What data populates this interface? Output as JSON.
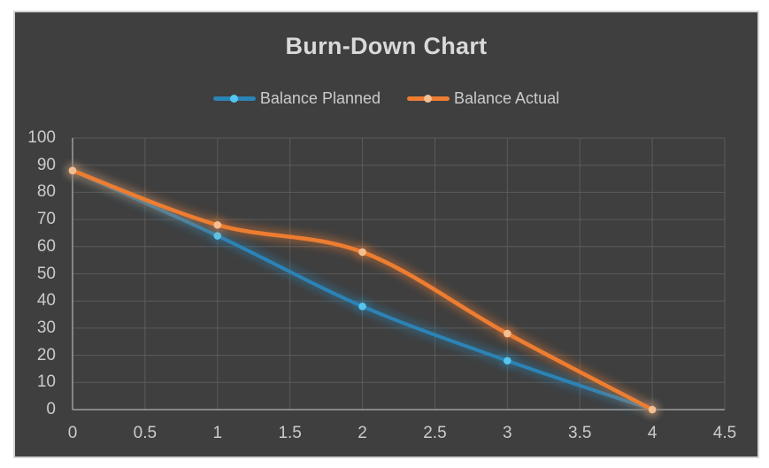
{
  "page": {
    "background": "#ffffff"
  },
  "chart_data": {
    "type": "line",
    "title": "Burn-Down Chart",
    "x": [
      0,
      1,
      2,
      3,
      4
    ],
    "series": [
      {
        "name": "Balance Planned",
        "values": [
          88,
          64,
          38,
          18,
          0
        ],
        "line_color": "#2C83B5",
        "marker_color": "#56C5F0",
        "line_width": 4
      },
      {
        "name": "Balance Actual",
        "values": [
          88,
          68,
          58,
          28,
          0
        ],
        "line_color": "#ED7D31",
        "marker_color": "#F4BE93",
        "line_width": 4.6
      }
    ],
    "xlim": [
      0,
      4.5
    ],
    "ylim": [
      0,
      100
    ],
    "x_ticks": [
      0,
      0.5,
      1,
      1.5,
      2,
      2.5,
      3,
      3.5,
      4,
      4.5
    ],
    "y_ticks": [
      0,
      10,
      20,
      30,
      40,
      50,
      60,
      70,
      80,
      90,
      100
    ],
    "grid": true,
    "smooth": true,
    "glow": true,
    "legend_position": "top-center",
    "theme": {
      "chart_background": "#3F3F3F",
      "frame_border": "#D5D3D3",
      "grid_color": "#5B5B5B",
      "axis_color": "#9E9E9E",
      "tick_text_color": "#CBCBCB",
      "title_color": "#D9D9D9",
      "legend_text_color": "#CBCBCB"
    }
  }
}
